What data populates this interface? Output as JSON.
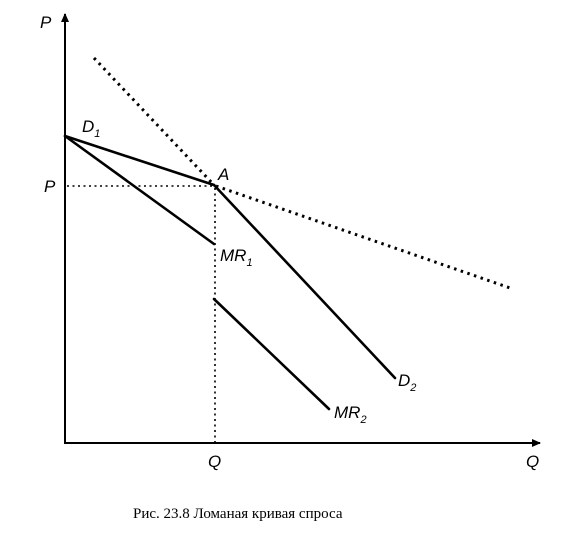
{
  "axes": {
    "y_label": "P",
    "x_label": "Q",
    "price_tick": "P",
    "quantity_tick": "Q"
  },
  "point_label": "A",
  "curves": {
    "d1": {
      "base": "D",
      "sub": "1"
    },
    "d2": {
      "base": "D",
      "sub": "2"
    },
    "mr1": {
      "base": "MR",
      "sub": "1"
    },
    "mr2": {
      "base": "MR",
      "sub": "2"
    }
  },
  "caption": "Рис. 23.8  Ломаная кривая спроса"
}
